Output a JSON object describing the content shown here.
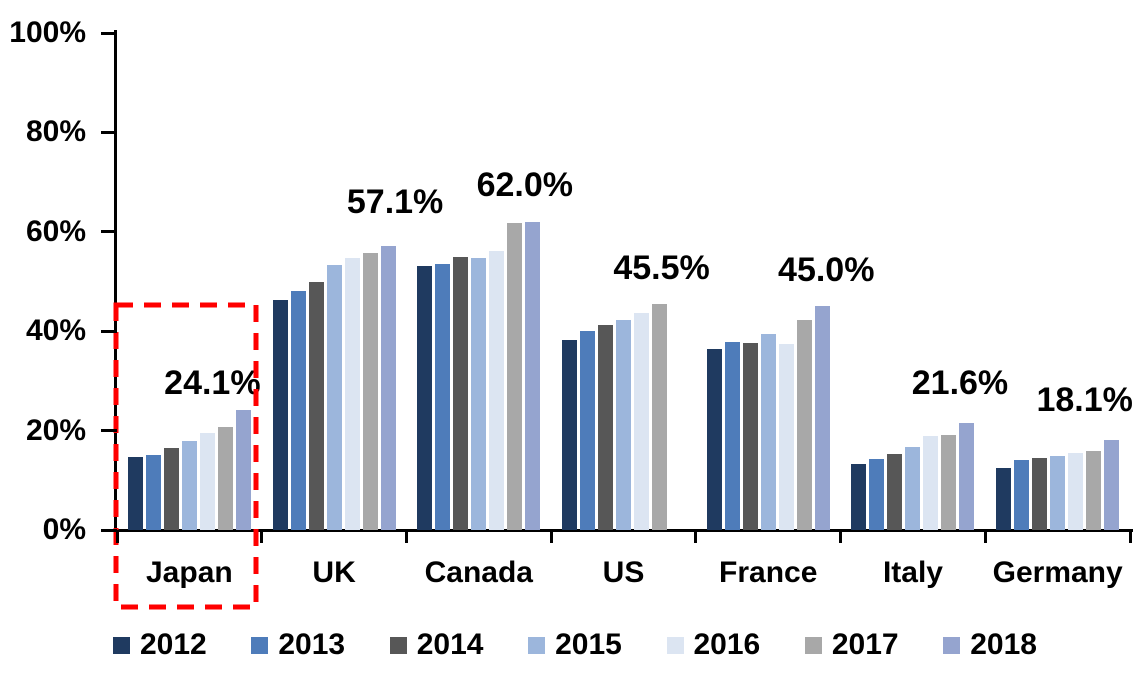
{
  "chart_data": {
    "type": "bar",
    "title": "",
    "xlabel": "",
    "ylabel": "",
    "ylim": [
      0,
      100
    ],
    "grid": false,
    "legend_position": "bottom",
    "categories": [
      "Japan",
      "UK",
      "Canada",
      "US",
      "France",
      "Italy",
      "Germany"
    ],
    "series": [
      {
        "name": "2012",
        "color": "#1F3A60",
        "values": [
          14.7,
          46.3,
          53.1,
          38.2,
          36.5,
          13.2,
          12.5
        ]
      },
      {
        "name": "2013",
        "color": "#4E7CBA",
        "values": [
          15.0,
          48.0,
          53.5,
          40.0,
          37.9,
          14.2,
          14.1
        ]
      },
      {
        "name": "2014",
        "color": "#575757",
        "values": [
          16.5,
          50.0,
          55.0,
          41.2,
          37.7,
          15.3,
          14.4
        ]
      },
      {
        "name": "2015",
        "color": "#9CB6DC",
        "values": [
          17.9,
          53.4,
          54.7,
          42.3,
          39.4,
          16.8,
          14.9
        ]
      },
      {
        "name": "2016",
        "color": "#DCE5F2",
        "values": [
          19.6,
          54.8,
          56.2,
          43.6,
          37.4,
          19.0,
          15.5
        ]
      },
      {
        "name": "2017",
        "color": "#A8A8A8",
        "values": [
          20.8,
          55.8,
          61.7,
          45.5,
          42.3,
          19.2,
          15.9
        ]
      },
      {
        "name": "2018",
        "color": "#95A4CF",
        "values": [
          24.1,
          57.1,
          62.0,
          null,
          45.0,
          21.6,
          18.1
        ]
      }
    ],
    "annotations": [
      "24.1%",
      "57.1%",
      "62.0%",
      "45.5%",
      "45.0%",
      "21.6%",
      "18.1%"
    ],
    "y_ticks": [
      {
        "label": "0%",
        "value": 0
      },
      {
        "label": "20%",
        "value": 20
      },
      {
        "label": "40%",
        "value": 40
      },
      {
        "label": "60%",
        "value": 60
      },
      {
        "label": "80%",
        "value": 80
      },
      {
        "label": "100%",
        "value": 100
      }
    ],
    "highlight": {
      "category": "Japan",
      "color": "#FF0000",
      "style": "dashed-rectangle"
    }
  }
}
